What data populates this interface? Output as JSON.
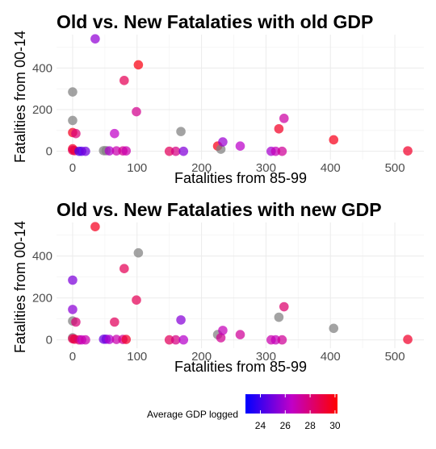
{
  "legend": {
    "title": "Average GDP logged",
    "min": 22.8,
    "max": 30.2,
    "ticks": [
      24,
      26,
      28,
      30
    ],
    "low_color": "#0000ff",
    "high_color": "#ff0000",
    "na_color": "#808080"
  },
  "chart_data": [
    {
      "type": "scatter",
      "title": "Old vs. New Fatalaties with old GDP",
      "xlabel": "Fatalities from 85-99",
      "ylabel": "Fatalities from 00-14",
      "xlim": [
        -25,
        545
      ],
      "ylim": [
        -40,
        560
      ],
      "xticks": [
        0,
        100,
        200,
        300,
        400,
        500
      ],
      "yticks": [
        0,
        200,
        400
      ],
      "grid": true,
      "points": [
        {
          "x": 0,
          "y": 285,
          "gdp": null
        },
        {
          "x": 0,
          "y": 148,
          "gdp": null
        },
        {
          "x": 0,
          "y": 90,
          "gdp": 29.6
        },
        {
          "x": 0,
          "y": 12,
          "gdp": 29.5
        },
        {
          "x": 0,
          "y": 5,
          "gdp": 28.6
        },
        {
          "x": 3,
          "y": 3,
          "gdp": 29.0
        },
        {
          "x": 5,
          "y": 85,
          "gdp": 28.0
        },
        {
          "x": 10,
          "y": 0,
          "gdp": 24.2
        },
        {
          "x": 14,
          "y": 0,
          "gdp": 24.6
        },
        {
          "x": 20,
          "y": 0,
          "gdp": 25.0
        },
        {
          "x": 35,
          "y": 540,
          "gdp": 25.6
        },
        {
          "x": 48,
          "y": 3,
          "gdp": null
        },
        {
          "x": 52,
          "y": 3,
          "gdp": null
        },
        {
          "x": 57,
          "y": 2,
          "gdp": 26.2
        },
        {
          "x": 65,
          "y": 85,
          "gdp": 26.5
        },
        {
          "x": 68,
          "y": 2,
          "gdp": 27.0
        },
        {
          "x": 78,
          "y": 2,
          "gdp": 27.5
        },
        {
          "x": 80,
          "y": 340,
          "gdp": 28.6
        },
        {
          "x": 83,
          "y": 2,
          "gdp": 27.0
        },
        {
          "x": 99,
          "y": 190,
          "gdp": 27.6
        },
        {
          "x": 102,
          "y": 415,
          "gdp": 29.9
        },
        {
          "x": 150,
          "y": 0,
          "gdp": 28.5
        },
        {
          "x": 160,
          "y": 0,
          "gdp": 27.8
        },
        {
          "x": 168,
          "y": 95,
          "gdp": null
        },
        {
          "x": 172,
          "y": 0,
          "gdp": 25.3
        },
        {
          "x": 225,
          "y": 25,
          "gdp": 29.8
        },
        {
          "x": 230,
          "y": 10,
          "gdp": null
        },
        {
          "x": 233,
          "y": 45,
          "gdp": 25.8
        },
        {
          "x": 260,
          "y": 25,
          "gdp": 26.4
        },
        {
          "x": 308,
          "y": 0,
          "gdp": 26.0
        },
        {
          "x": 315,
          "y": 0,
          "gdp": 26.8
        },
        {
          "x": 320,
          "y": 108,
          "gdp": 29.5
        },
        {
          "x": 325,
          "y": 0,
          "gdp": 27.4
        },
        {
          "x": 328,
          "y": 158,
          "gdp": 27.2
        },
        {
          "x": 405,
          "y": 55,
          "gdp": 29.7
        },
        {
          "x": 520,
          "y": 2,
          "gdp": 29.4
        }
      ]
    },
    {
      "type": "scatter",
      "title": "Old vs. New Fatalaties with new GDP",
      "xlabel": "Fatalities from 85-99",
      "ylabel": "Fatalities from 00-14",
      "xlim": [
        -25,
        545
      ],
      "ylim": [
        -40,
        560
      ],
      "xticks": [
        0,
        100,
        200,
        300,
        400,
        500
      ],
      "yticks": [
        0,
        200,
        400
      ],
      "grid": true,
      "points": [
        {
          "x": 0,
          "y": 285,
          "gdp": 25.2
        },
        {
          "x": 0,
          "y": 145,
          "gdp": 25.5
        },
        {
          "x": 0,
          "y": 90,
          "gdp": null
        },
        {
          "x": 0,
          "y": 10,
          "gdp": null
        },
        {
          "x": 0,
          "y": 5,
          "gdp": 28.6
        },
        {
          "x": 3,
          "y": 3,
          "gdp": 29.0
        },
        {
          "x": 5,
          "y": 85,
          "gdp": 28.0
        },
        {
          "x": 10,
          "y": 0,
          "gdp": 28.2
        },
        {
          "x": 14,
          "y": 0,
          "gdp": 26.6
        },
        {
          "x": 20,
          "y": 0,
          "gdp": 27.0
        },
        {
          "x": 35,
          "y": 540,
          "gdp": 29.6
        },
        {
          "x": 48,
          "y": 3,
          "gdp": 24.8
        },
        {
          "x": 52,
          "y": 3,
          "gdp": 25.0
        },
        {
          "x": 57,
          "y": 2,
          "gdp": 26.2
        },
        {
          "x": 65,
          "y": 85,
          "gdp": 28.5
        },
        {
          "x": 68,
          "y": 2,
          "gdp": 27.0
        },
        {
          "x": 78,
          "y": 2,
          "gdp": 27.5
        },
        {
          "x": 80,
          "y": 340,
          "gdp": 28.6
        },
        {
          "x": 83,
          "y": 2,
          "gdp": 29.4
        },
        {
          "x": 99,
          "y": 190,
          "gdp": 28.6
        },
        {
          "x": 102,
          "y": 415,
          "gdp": null
        },
        {
          "x": 150,
          "y": 0,
          "gdp": 28.5
        },
        {
          "x": 160,
          "y": 0,
          "gdp": 27.8
        },
        {
          "x": 168,
          "y": 95,
          "gdp": 25.4
        },
        {
          "x": 172,
          "y": 0,
          "gdp": 26.3
        },
        {
          "x": 225,
          "y": 25,
          "gdp": null
        },
        {
          "x": 230,
          "y": 10,
          "gdp": 27.5
        },
        {
          "x": 233,
          "y": 45,
          "gdp": 26.8
        },
        {
          "x": 260,
          "y": 25,
          "gdp": 27.4
        },
        {
          "x": 308,
          "y": 0,
          "gdp": 27.0
        },
        {
          "x": 315,
          "y": 0,
          "gdp": 26.8
        },
        {
          "x": 320,
          "y": 108,
          "gdp": null
        },
        {
          "x": 325,
          "y": 0,
          "gdp": 27.4
        },
        {
          "x": 328,
          "y": 158,
          "gdp": 28.2
        },
        {
          "x": 405,
          "y": 55,
          "gdp": null
        },
        {
          "x": 520,
          "y": 2,
          "gdp": 29.4
        }
      ]
    }
  ]
}
